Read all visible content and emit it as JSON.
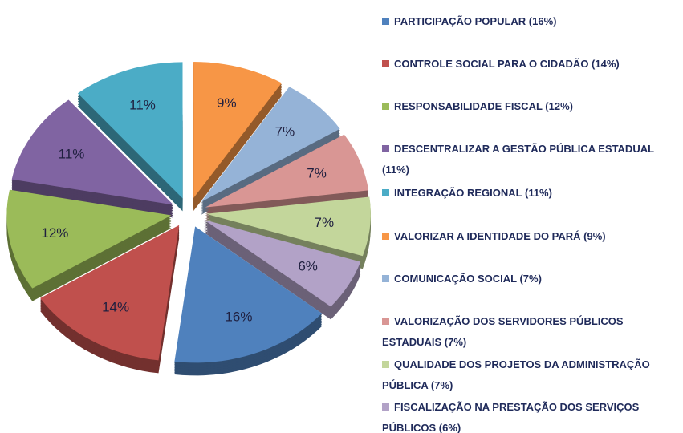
{
  "chart_data": {
    "type": "pie",
    "categories": [
      "PARTICIPAÇÃO POPULAR  (16%)",
      "CONTROLE SOCIAL PARA O CIDADÃO  (14%)",
      "RESPONSABILIDADE FISCAL  (12%)",
      "DESCENTRALIZAR A GESTÃO PÚBLICA ESTADUAL (11%)",
      "INTEGRAÇÃO REGIONAL  (11%)",
      "VALORIZAR A IDENTIDADE DO PARÁ  (9%)",
      "COMUNICAÇÃO SOCIAL  (7%)",
      "VALORIZAÇÃO DOS SERVIDORES PÚBLICOS ESTADUAIS  (7%)",
      "QUALIDADE DOS PROJETOS DA ADMINISTRAÇÃO PÚBLICA  (7%)",
      "FISCALIZAÇÃO NA PRESTAÇÃO DOS SERVIÇOS PÚBLICOS  (6%)"
    ],
    "values": [
      16,
      14,
      12,
      11,
      11,
      9,
      7,
      7,
      7,
      6
    ],
    "value_labels": [
      "16%",
      "14%",
      "12%",
      "11%",
      "11%",
      "9%",
      "7%",
      "7%",
      "7%",
      "6%"
    ],
    "colors": [
      "#4f81bd",
      "#c0504d",
      "#9bbb59",
      "#8064a2",
      "#4bacc6",
      "#f79646",
      "#95b3d7",
      "#d99694",
      "#c3d69b",
      "#b2a2c7"
    ],
    "legend": "right"
  }
}
